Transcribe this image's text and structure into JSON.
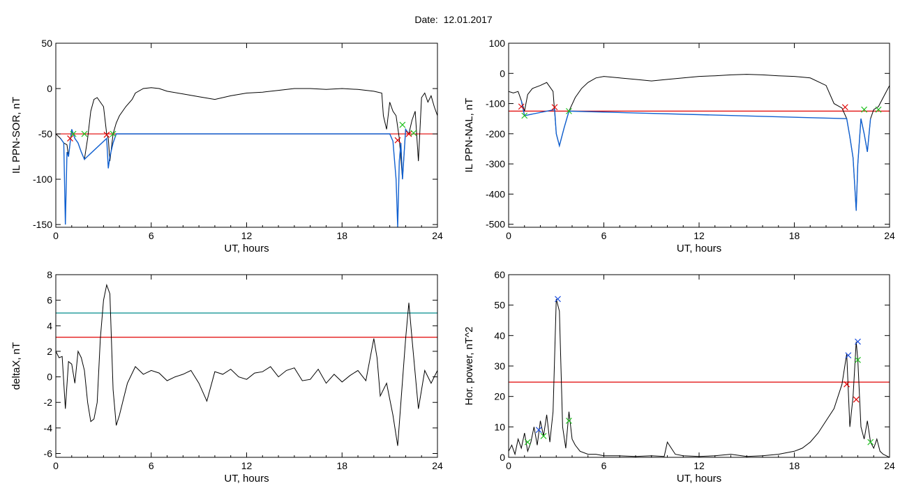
{
  "header": {
    "date_label": "Date:",
    "date_value": "12.01.2017"
  },
  "chart_data": [
    {
      "type": "line",
      "ylabel": "IL PPN-SOR, nT",
      "xlabel": "UT, hours",
      "xlim": [
        0,
        24
      ],
      "ylim": [
        -153,
        50
      ],
      "xticks": [
        0,
        6,
        12,
        18,
        24
      ],
      "xtick_labels": [
        "0",
        "6",
        "12",
        "18",
        "24"
      ],
      "yticks": [
        50,
        0,
        -50,
        -100,
        -150
      ],
      "ytick_labels": [
        "50",
        "0",
        "-50",
        "-100",
        "-150"
      ],
      "threshold_lines": [
        {
          "y": -50,
          "color": "#e00000"
        }
      ],
      "series": [
        {
          "color": "#000000",
          "x": [
            0,
            0.3,
            0.5,
            0.7,
            0.8,
            1.0,
            1.2,
            1.4,
            1.6,
            1.8,
            2.0,
            2.2,
            2.4,
            2.6,
            2.8,
            3.0,
            3.2,
            3.3,
            3.4,
            3.6,
            3.8,
            4.0,
            4.4,
            4.8,
            5.0,
            5.5,
            6.0,
            6.5,
            7.0,
            8.0,
            9.0,
            10.0,
            11.0,
            12.0,
            13.0,
            14.0,
            15.0,
            16.0,
            17.0,
            18.0,
            19.0,
            20.0,
            20.5,
            20.6,
            20.8,
            21.0,
            21.2,
            21.4,
            21.6,
            21.8,
            22.0,
            22.2,
            22.4,
            22.6,
            22.8,
            23.0,
            23.2,
            23.4,
            23.6,
            23.8,
            24.0
          ],
          "y": [
            -50,
            -55,
            -60,
            -62,
            -75,
            -45,
            -55,
            -60,
            -70,
            -78,
            -55,
            -25,
            -12,
            -10,
            -15,
            -20,
            -50,
            -55,
            -80,
            -50,
            -38,
            -30,
            -20,
            -12,
            -5,
            0,
            1,
            0,
            -3,
            -6,
            -9,
            -12,
            -8,
            -5,
            -4,
            -2,
            0,
            0,
            -1,
            0,
            -1,
            -3,
            -5,
            -30,
            -45,
            -15,
            -25,
            -30,
            -55,
            -100,
            -45,
            -50,
            -35,
            -25,
            -80,
            -10,
            -5,
            -15,
            -8,
            -20,
            -30
          ]
        },
        {
          "color": "#1060d0",
          "x": [
            0.3,
            0.5,
            0.6,
            0.7,
            0.8,
            1.0,
            1.2,
            1.4,
            1.6,
            1.8,
            3.2,
            3.3,
            3.4,
            3.6,
            3.8,
            21.0,
            21.2,
            21.4,
            21.5,
            21.6,
            21.7,
            21.8,
            22.0,
            22.2
          ],
          "y": [
            -55,
            -60,
            -150,
            -70,
            -75,
            -45,
            -55,
            -60,
            -70,
            -78,
            -55,
            -88,
            -75,
            -60,
            -50,
            -50,
            -58,
            -100,
            -153,
            -80,
            -60,
            -100,
            -45,
            -50
          ]
        }
      ],
      "markers": [
        {
          "x": 0.9,
          "y": -55,
          "color": "#e00000"
        },
        {
          "x": 1.1,
          "y": -50,
          "color": "#20c020"
        },
        {
          "x": 1.8,
          "y": -50,
          "color": "#20c020"
        },
        {
          "x": 3.2,
          "y": -51,
          "color": "#e00000"
        },
        {
          "x": 3.6,
          "y": -50,
          "color": "#20c020"
        },
        {
          "x": 21.5,
          "y": -57,
          "color": "#e00000"
        },
        {
          "x": 21.8,
          "y": -40,
          "color": "#20c020"
        },
        {
          "x": 22.2,
          "y": -50,
          "color": "#e00000"
        },
        {
          "x": 22.5,
          "y": -49,
          "color": "#20c020"
        }
      ]
    },
    {
      "type": "line",
      "ylabel": "IL PPN-NAL, nT",
      "xlabel": "UT, hours",
      "xlim": [
        0,
        24
      ],
      "ylim": [
        -510,
        100
      ],
      "xticks": [
        0,
        6,
        12,
        18,
        24
      ],
      "xtick_labels": [
        "0",
        "6",
        "12",
        "18",
        "24"
      ],
      "yticks": [
        100,
        0,
        -100,
        -200,
        -300,
        -400,
        -500
      ],
      "ytick_labels": [
        "100",
        "0",
        "-100",
        "-200",
        "-300",
        "-400",
        "-500"
      ],
      "threshold_lines": [
        {
          "y": -125,
          "color": "#e00000"
        }
      ],
      "series": [
        {
          "color": "#000000",
          "x": [
            0,
            0.3,
            0.6,
            0.8,
            1.0,
            1.2,
            1.5,
            2.0,
            2.4,
            2.8,
            3.0,
            3.2,
            3.5,
            3.8,
            4.2,
            4.6,
            5.0,
            5.5,
            6.0,
            7.0,
            8.0,
            9.0,
            10.0,
            11.0,
            12.0,
            13.0,
            14.0,
            15.0,
            16.0,
            17.0,
            18.0,
            19.0,
            20.0,
            20.5,
            21.0,
            21.3,
            21.5,
            21.7,
            21.9,
            22.0,
            22.2,
            22.4,
            22.6,
            22.8,
            23.0,
            23.3,
            23.6,
            24.0
          ],
          "y": [
            -60,
            -65,
            -60,
            -90,
            -125,
            -70,
            -50,
            -40,
            -30,
            -60,
            -200,
            -240,
            -180,
            -125,
            -80,
            -50,
            -30,
            -15,
            -10,
            -15,
            -20,
            -25,
            -20,
            -15,
            -10,
            -8,
            -5,
            -3,
            -5,
            -8,
            -10,
            -15,
            -40,
            -100,
            -115,
            -150,
            -210,
            -280,
            -455,
            -300,
            -150,
            -200,
            -260,
            -150,
            -120,
            -110,
            -80,
            -40
          ]
        },
        {
          "color": "#1060d0",
          "x": [
            0.8,
            1.0,
            2.9,
            3.0,
            3.2,
            3.5,
            3.8,
            21.3,
            21.5,
            21.7,
            21.9,
            22.0,
            22.2,
            22.4,
            22.6,
            22.8
          ],
          "y": [
            -90,
            -140,
            -120,
            -200,
            -240,
            -180,
            -125,
            -150,
            -210,
            -280,
            -455,
            -300,
            -150,
            -200,
            -260,
            -150
          ]
        }
      ],
      "markers": [
        {
          "x": 0.8,
          "y": -110,
          "color": "#e00000"
        },
        {
          "x": 1.0,
          "y": -140,
          "color": "#20c020"
        },
        {
          "x": 2.9,
          "y": -112,
          "color": "#e00000"
        },
        {
          "x": 3.8,
          "y": -125,
          "color": "#20c020"
        },
        {
          "x": 21.2,
          "y": -112,
          "color": "#e00000"
        },
        {
          "x": 22.4,
          "y": -120,
          "color": "#20c020"
        },
        {
          "x": 23.3,
          "y": -120,
          "color": "#20c020"
        }
      ]
    },
    {
      "type": "line",
      "ylabel": "deltaX, nT",
      "xlabel": "UT, hours",
      "xlim": [
        0,
        24
      ],
      "ylim": [
        -6.3,
        8
      ],
      "xticks": [
        0,
        6,
        12,
        18,
        24
      ],
      "xtick_labels": [
        "0",
        "6",
        "12",
        "18",
        "24"
      ],
      "yticks": [
        8,
        6,
        4,
        2,
        0,
        -2,
        -4,
        -6
      ],
      "ytick_labels": [
        "8",
        "6",
        "4",
        "2",
        "0",
        "-2",
        "-4",
        "-6"
      ],
      "threshold_lines": [
        {
          "y": 5,
          "color": "#008c8c"
        },
        {
          "y": 3.1,
          "color": "#e00000"
        }
      ],
      "series": [
        {
          "color": "#000000",
          "x": [
            0,
            0.2,
            0.4,
            0.6,
            0.8,
            1.0,
            1.2,
            1.4,
            1.6,
            1.8,
            2.0,
            2.2,
            2.4,
            2.6,
            2.8,
            3.0,
            3.2,
            3.4,
            3.6,
            3.8,
            4.0,
            4.2,
            4.5,
            5.0,
            5.5,
            6.0,
            6.5,
            7.0,
            7.5,
            8.0,
            8.5,
            9.0,
            9.5,
            10.0,
            10.5,
            11.0,
            11.5,
            12.0,
            12.5,
            13.0,
            13.5,
            14.0,
            14.5,
            15.0,
            15.5,
            16.0,
            16.5,
            17.0,
            17.5,
            18.0,
            18.5,
            19.0,
            19.5,
            20.0,
            20.2,
            20.4,
            20.8,
            21.2,
            21.5,
            21.7,
            22.0,
            22.2,
            22.4,
            22.8,
            23.2,
            23.6,
            24.0
          ],
          "y": [
            2,
            1.5,
            1.6,
            -2.5,
            1.2,
            1.0,
            -0.5,
            2.0,
            1.5,
            0.5,
            -2.0,
            -3.5,
            -3.3,
            -2.0,
            3.0,
            6.0,
            7.2,
            6.5,
            -1.0,
            -3.8,
            -3.0,
            -2.0,
            -0.5,
            0.8,
            0.2,
            0.5,
            0.3,
            -0.3,
            0.0,
            0.2,
            0.5,
            -0.5,
            -1.9,
            0.4,
            0.2,
            0.6,
            0.0,
            -0.2,
            0.3,
            0.4,
            0.8,
            0.0,
            0.5,
            0.7,
            -0.3,
            -0.2,
            0.6,
            -0.5,
            0.2,
            -0.4,
            0.1,
            0.5,
            -0.3,
            3.0,
            1.5,
            -1.5,
            -0.5,
            -3.0,
            -5.4,
            -2.0,
            3.0,
            5.8,
            3.0,
            -2.5,
            0.5,
            -0.5,
            0.5
          ]
        }
      ],
      "markers": []
    },
    {
      "type": "line",
      "ylabel": "Hor. power, nT^2",
      "xlabel": "UT, hours",
      "xlim": [
        0,
        24
      ],
      "ylim": [
        0,
        60
      ],
      "xticks": [
        0,
        6,
        12,
        18,
        24
      ],
      "xtick_labels": [
        "0",
        "6",
        "12",
        "18",
        "24"
      ],
      "yticks": [
        60,
        50,
        40,
        30,
        20,
        10,
        0
      ],
      "ytick_labels": [
        "60",
        "50",
        "40",
        "30",
        "20",
        "10",
        "0"
      ],
      "threshold_lines": [
        {
          "y": 24.7,
          "color": "#e00000"
        }
      ],
      "series": [
        {
          "color": "#000000",
          "x": [
            0,
            0.2,
            0.4,
            0.6,
            0.8,
            1.0,
            1.2,
            1.4,
            1.6,
            1.8,
            2.0,
            2.2,
            2.4,
            2.6,
            2.8,
            3.0,
            3.2,
            3.4,
            3.6,
            3.8,
            4.0,
            4.2,
            4.5,
            5.0,
            5.5,
            6.0,
            7.0,
            8.0,
            9.0,
            9.8,
            10.0,
            10.5,
            11.0,
            12.0,
            13.0,
            14.0,
            15.0,
            16.0,
            17.0,
            18.0,
            18.5,
            19.0,
            19.5,
            20.0,
            20.5,
            21.0,
            21.3,
            21.5,
            21.7,
            21.9,
            22.0,
            22.2,
            22.4,
            22.6,
            22.8,
            23.0,
            23.2,
            23.4,
            23.6,
            24.0
          ],
          "y": [
            2,
            4,
            1,
            6,
            3,
            8,
            2,
            5,
            10,
            4,
            12,
            7,
            14,
            5,
            15,
            52,
            48,
            10,
            3,
            15,
            6,
            4,
            2,
            1,
            1,
            0.5,
            0.5,
            0.3,
            0.5,
            0.3,
            5,
            1,
            0.5,
            0.3,
            0.5,
            1,
            0.3,
            0.5,
            1,
            2,
            3,
            5,
            8,
            12,
            16,
            24,
            34,
            10,
            20,
            38,
            32,
            10,
            6,
            12,
            5,
            3,
            6,
            2,
            1,
            0
          ]
        }
      ],
      "markers": [
        {
          "x": 1.2,
          "y": 5,
          "color": "#20c020"
        },
        {
          "x": 1.9,
          "y": 9,
          "color": "#1e50e0"
        },
        {
          "x": 2.2,
          "y": 7,
          "color": "#20c020"
        },
        {
          "x": 3.1,
          "y": 52,
          "color": "#1e50e0"
        },
        {
          "x": 3.8,
          "y": 12,
          "color": "#20c020"
        },
        {
          "x": 21.3,
          "y": 24,
          "color": "#e00000"
        },
        {
          "x": 21.4,
          "y": 33.5,
          "color": "#1e50e0"
        },
        {
          "x": 21.9,
          "y": 19,
          "color": "#e00000"
        },
        {
          "x": 22.0,
          "y": 38,
          "color": "#1e50e0"
        },
        {
          "x": 22.0,
          "y": 32,
          "color": "#20c020"
        },
        {
          "x": 22.8,
          "y": 5,
          "color": "#20c020"
        }
      ]
    }
  ]
}
